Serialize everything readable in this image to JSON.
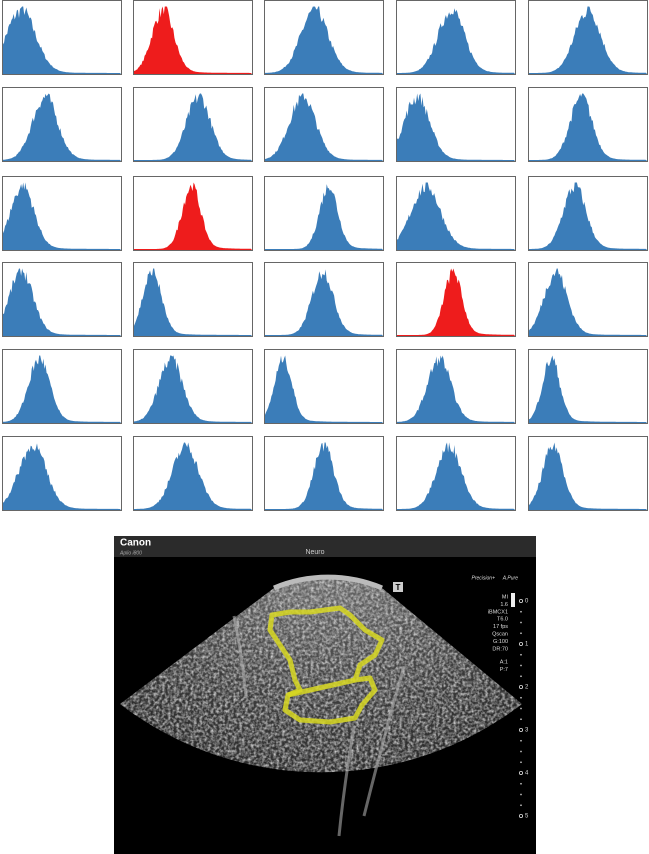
{
  "histograms": {
    "panels": [
      {
        "color": "#3b7db9"
      },
      {
        "color": "#ee1c1c"
      },
      {
        "color": "#3b7db9"
      },
      {
        "color": "#3b7db9"
      },
      {
        "color": "#3b7db9"
      },
      {
        "color": "#3b7db9"
      },
      {
        "color": "#3b7db9"
      },
      {
        "color": "#3b7db9"
      },
      {
        "color": "#3b7db9"
      },
      {
        "color": "#3b7db9"
      },
      {
        "color": "#3b7db9"
      },
      {
        "color": "#ee1c1c"
      },
      {
        "color": "#3b7db9"
      },
      {
        "color": "#3b7db9"
      },
      {
        "color": "#3b7db9"
      },
      {
        "color": "#3b7db9"
      },
      {
        "color": "#3b7db9"
      },
      {
        "color": "#3b7db9"
      },
      {
        "color": "#ee1c1c"
      },
      {
        "color": "#3b7db9"
      },
      {
        "color": "#3b7db9"
      },
      {
        "color": "#3b7db9"
      },
      {
        "color": "#3b7db9"
      },
      {
        "color": "#3b7db9"
      },
      {
        "color": "#3b7db9"
      },
      {
        "color": "#3b7db9"
      },
      {
        "color": "#3b7db9"
      },
      {
        "color": "#3b7db9"
      },
      {
        "color": "#3b7db9"
      },
      {
        "color": "#3b7db9"
      }
    ]
  },
  "ultrasound": {
    "brand": "Canon",
    "model": "Aplio i800",
    "preset": "Neuro",
    "modes": [
      "Precision+",
      "A.Pure"
    ],
    "params": [
      "MI",
      "1.6",
      "iBMCX1",
      "T6.0",
      "17 fps",
      "Qscan",
      "G:100",
      "DR:70",
      "A:1",
      "P:7"
    ],
    "marker": "T",
    "depth": [
      "0",
      "1",
      "2",
      "3",
      "4",
      "5"
    ]
  }
}
